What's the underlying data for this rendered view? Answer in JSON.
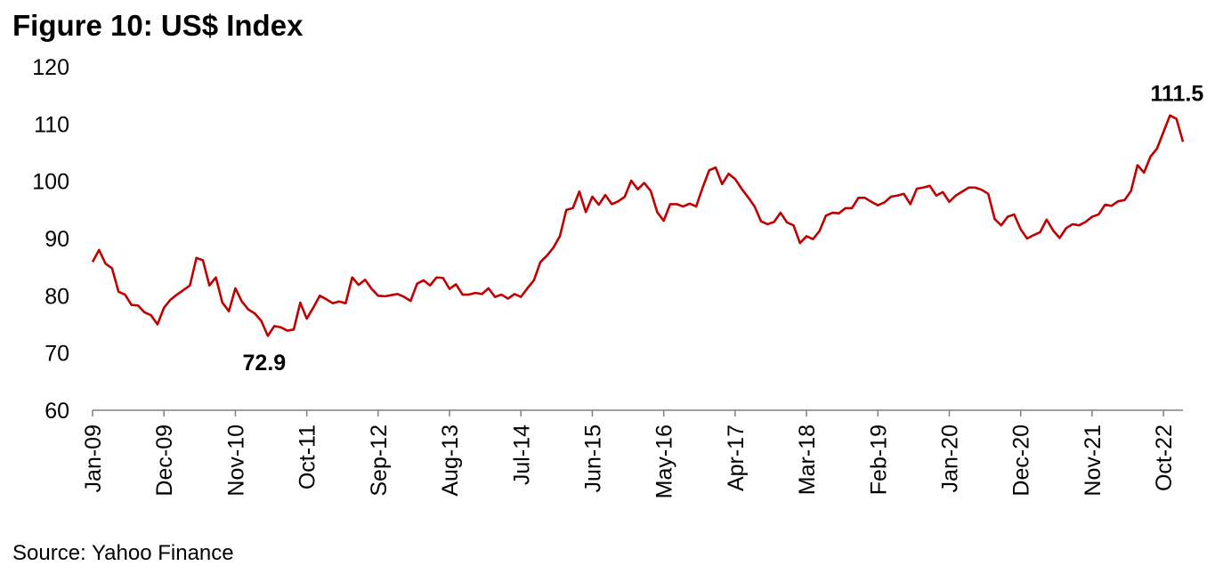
{
  "title": "Figure 10: US$ Index",
  "source": "Source: Yahoo Finance",
  "colors": {
    "line": "#C00000",
    "axis": "#7f7f7f"
  },
  "chart_data": {
    "type": "line",
    "title": "Figure 10: US$ Index",
    "xlabel": "",
    "ylabel": "",
    "ylim": [
      60,
      120
    ],
    "yticks": [
      60,
      70,
      80,
      90,
      100,
      110,
      120
    ],
    "grid": false,
    "legend": "none",
    "x_tick_labels": [
      "Jan-09",
      "Dec-09",
      "Nov-10",
      "Oct-11",
      "Sep-12",
      "Aug-13",
      "Jul-14",
      "Jun-15",
      "May-16",
      "Apr-17",
      "Mar-18",
      "Feb-19",
      "Jan-20",
      "Dec-20",
      "Nov-21",
      "Oct-22"
    ],
    "x_start": "Jan-09",
    "frequency": "monthly",
    "series": [
      {
        "values": [
          85.9,
          88.0,
          85.6,
          84.8,
          80.7,
          80.2,
          78.4,
          78.3,
          77.1,
          76.6,
          75.0,
          77.9,
          79.3,
          80.2,
          81.0,
          81.8,
          86.6,
          86.2,
          81.8,
          83.2,
          78.8,
          77.3,
          81.3,
          79.0,
          77.6,
          76.9,
          75.6,
          73.0,
          74.7,
          74.5,
          73.9,
          74.1,
          78.8,
          76.0,
          77.9,
          80.0,
          79.4,
          78.7,
          79.0,
          78.7,
          83.2,
          81.9,
          82.8,
          81.2,
          80.0,
          79.9,
          80.1,
          80.3,
          79.8,
          79.1,
          82.1,
          82.7,
          81.8,
          83.2,
          83.1,
          81.2,
          82.0,
          80.2,
          80.2,
          80.5,
          80.3,
          81.3,
          79.8,
          80.2,
          79.5,
          80.3,
          79.8,
          81.3,
          82.7,
          85.9,
          87.0,
          88.4,
          90.4,
          95.0,
          95.3,
          98.2,
          94.6,
          97.3,
          95.9,
          97.6,
          96.0,
          96.5,
          97.3,
          100.1,
          98.6,
          99.7,
          98.3,
          94.6,
          93.1,
          96.0,
          96.0,
          95.6,
          96.1,
          95.6,
          98.9,
          101.9,
          102.4,
          99.5,
          101.3,
          100.4,
          98.7,
          97.2,
          95.6,
          93.0,
          92.5,
          92.9,
          94.5,
          92.8,
          92.3,
          89.2,
          90.4,
          89.9,
          91.3,
          94.0,
          94.5,
          94.4,
          95.3,
          95.3,
          97.1,
          97.1,
          96.4,
          95.8,
          96.3,
          97.3,
          97.5,
          97.8,
          96.0,
          98.7,
          98.9,
          99.2,
          97.5,
          98.1,
          96.4,
          97.5,
          98.2,
          98.9,
          98.9,
          98.5,
          97.8,
          93.4,
          92.3,
          93.8,
          94.2,
          91.6,
          90.0,
          90.6,
          91.1,
          93.3,
          91.4,
          90.1,
          91.8,
          92.5,
          92.3,
          92.9,
          93.8,
          94.2,
          95.9,
          95.7,
          96.5,
          96.7,
          98.3,
          102.8,
          101.5,
          104.3,
          105.7,
          108.6,
          111.5,
          110.9,
          106.9
        ]
      }
    ],
    "annotations": [
      {
        "text": "72.9",
        "value": 72.9,
        "x": "Apr-11"
      },
      {
        "text": "111.5",
        "value": 111.5,
        "x": "Sep-22"
      }
    ]
  }
}
